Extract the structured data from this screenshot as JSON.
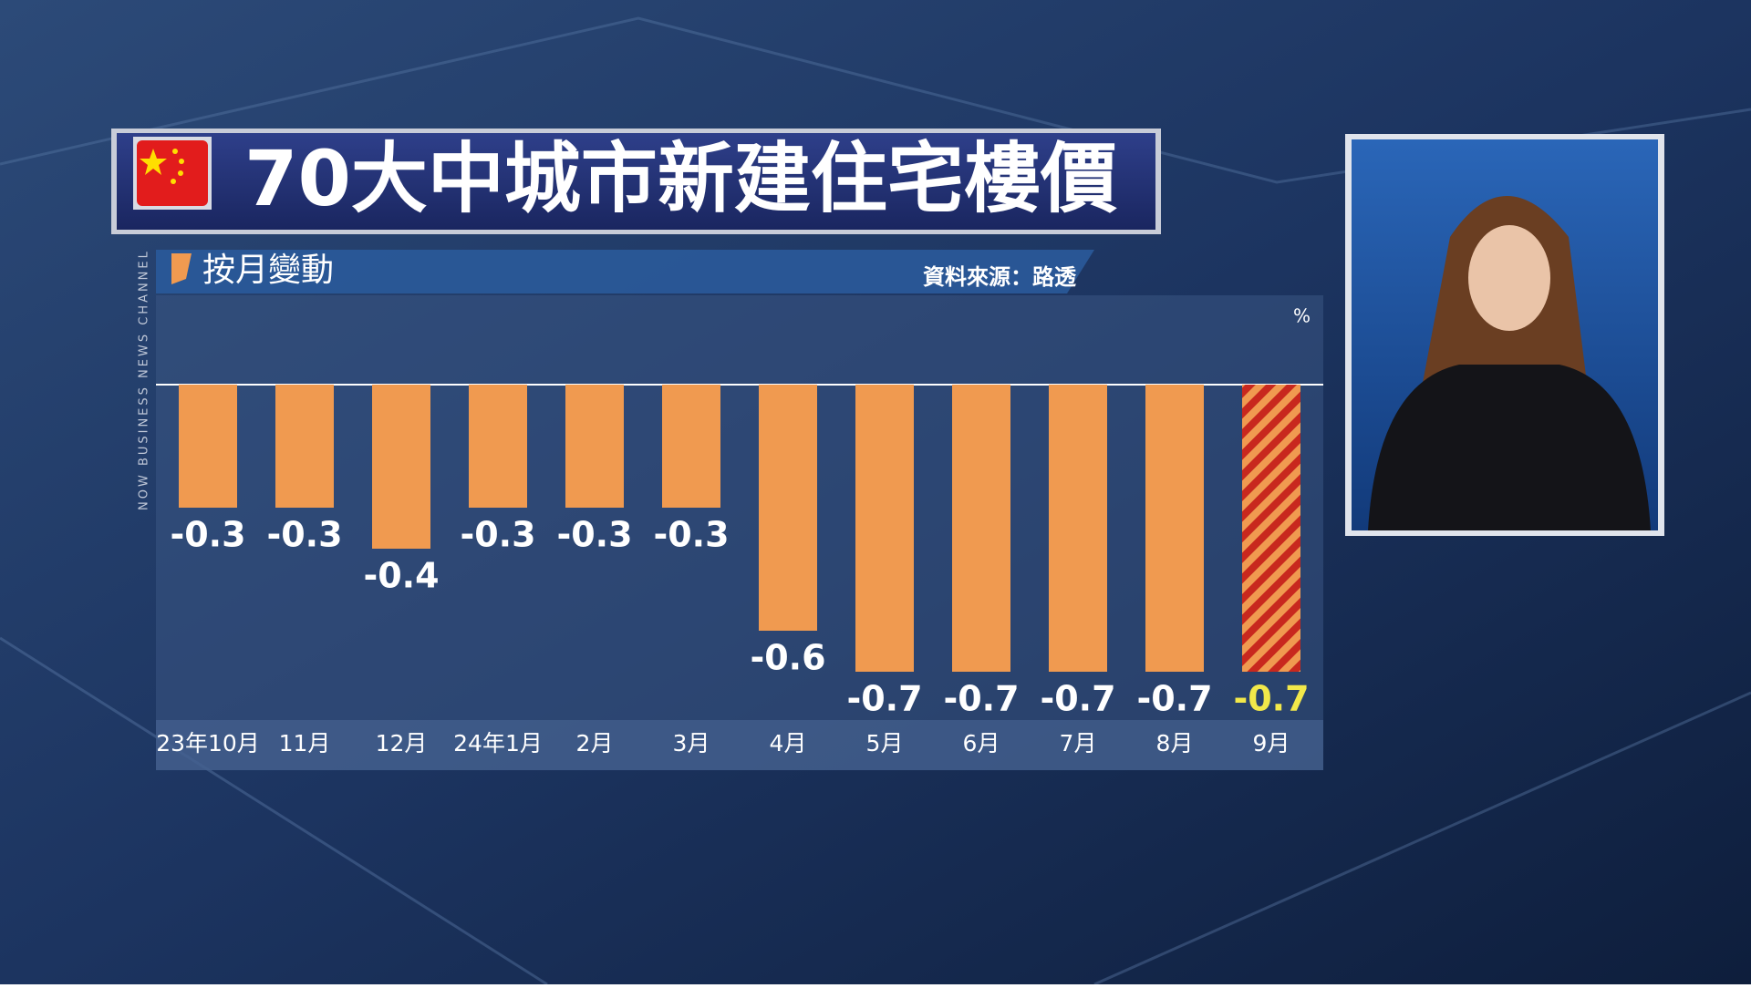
{
  "chart_data": {
    "type": "bar",
    "title": "70大中城市新建住宅樓價",
    "subtitle": "按月變動",
    "source": "資料來源：路透",
    "unit": "%",
    "channel": "NOW BUSINESS NEWS CHANNEL",
    "categories": [
      "23年10月",
      "11月",
      "12月",
      "24年1月",
      "2月",
      "3月",
      "4月",
      "5月",
      "6月",
      "7月",
      "8月",
      "9月"
    ],
    "values": [
      -0.3,
      -0.3,
      -0.4,
      -0.3,
      -0.3,
      -0.3,
      -0.6,
      -0.7,
      -0.7,
      -0.7,
      -0.7,
      -0.7
    ],
    "color": "#f09a50",
    "highlight": "9月",
    "highlight_color": "#c8281e",
    "highlight_label_color": "#f2e84a",
    "ylim": [
      -0.8,
      0
    ]
  }
}
